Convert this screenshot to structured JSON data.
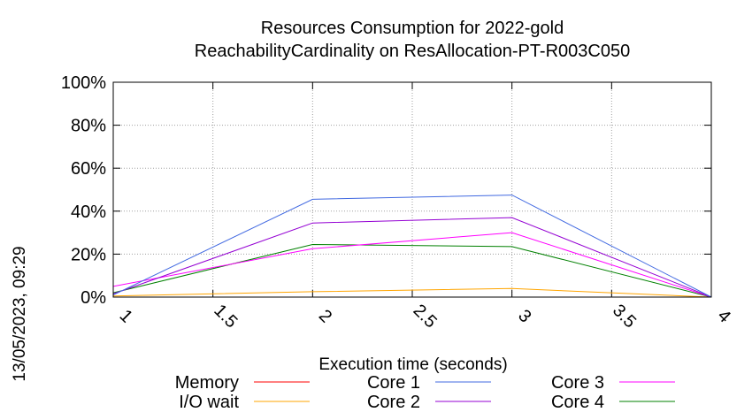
{
  "timestamp": "13/05/2023, 09:29",
  "chart_data": {
    "type": "line",
    "title": "Resources Consumption for 2022-gold",
    "subtitle": "ReachabilityCardinality on ResAllocation-PT-R003C050",
    "xlabel": "Execution time (seconds)",
    "ylabel": "",
    "xlim": [
      1,
      4
    ],
    "ylim": [
      0,
      100
    ],
    "x_ticks": [
      "1",
      "1.5",
      "2",
      "2.5",
      "3",
      "3.5",
      "4"
    ],
    "x_tick_values": [
      1,
      1.5,
      2,
      2.5,
      3,
      3.5,
      4
    ],
    "y_ticks": [
      "0%",
      "20%",
      "40%",
      "60%",
      "80%",
      "100%"
    ],
    "y_tick_values": [
      0,
      20,
      40,
      60,
      80,
      100
    ],
    "grid": true,
    "legend_position": "bottom",
    "x": [
      1,
      2,
      3,
      4
    ],
    "series": [
      {
        "name": "Memory",
        "color": "#ff0000",
        "values": [
          0,
          0,
          0,
          0
        ]
      },
      {
        "name": "I/O wait",
        "color": "#ffa500",
        "values": [
          0.5,
          2.5,
          4,
          0
        ]
      },
      {
        "name": "Core 1",
        "color": "#4169e1",
        "values": [
          1,
          45.5,
          47.5,
          0
        ]
      },
      {
        "name": "Core 2",
        "color": "#9400d3",
        "values": [
          1.5,
          34.5,
          37,
          0
        ]
      },
      {
        "name": "Core 3",
        "color": "#ff00ff",
        "values": [
          5,
          22.5,
          30,
          0
        ]
      },
      {
        "name": "Core 4",
        "color": "#008000",
        "values": [
          2,
          24.5,
          23.5,
          0
        ]
      }
    ]
  }
}
